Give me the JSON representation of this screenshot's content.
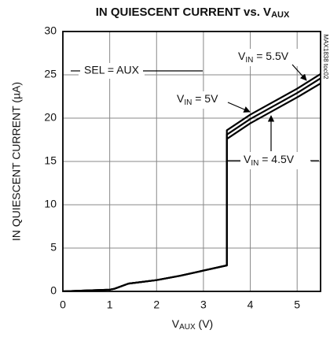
{
  "chart_data": {
    "type": "line",
    "title": {
      "main": "IN QUIESCENT CURRENT vs. V",
      "sub": "AUX"
    },
    "x_label": {
      "main": "V",
      "sub": "AUX",
      "rest": " (V)"
    },
    "y_label": "IN QUIESCENT CURRENT (µA)",
    "note": "MAX1838 toc02",
    "xlim": [
      0,
      5.5
    ],
    "xticks": [
      0,
      1,
      2,
      3,
      4,
      5
    ],
    "ylim": [
      0,
      30
    ],
    "yticks": [
      0,
      5,
      10,
      15,
      20,
      25,
      30
    ],
    "grid": true,
    "series": [
      {
        "color": "#000000",
        "x": [
          0,
          0.5,
          1.0,
          1.1,
          1.4,
          2,
          2.5,
          3,
          3.5,
          3.5,
          4,
          4.5,
          5,
          5.5
        ],
        "values": [
          0,
          0.1,
          0.2,
          0.3,
          0.9,
          1.3,
          1.8,
          2.4,
          3.0,
          17.6,
          19.4,
          20.9,
          22.4,
          24.0
        ]
      },
      {
        "color": "#000000",
        "x": [
          0,
          0.5,
          1.0,
          1.1,
          1.4,
          2,
          2.5,
          3,
          3.5,
          3.5,
          4,
          4.5,
          5,
          5.5
        ],
        "values": [
          0,
          0.1,
          0.2,
          0.3,
          0.9,
          1.3,
          1.8,
          2.4,
          3.0,
          18.1,
          19.9,
          21.4,
          22.9,
          24.6
        ]
      },
      {
        "color": "#000000",
        "x": [
          0,
          0.5,
          1.0,
          1.1,
          1.4,
          2,
          2.5,
          3,
          3.5,
          3.5,
          4,
          4.5,
          5,
          5.5
        ],
        "values": [
          0,
          0.1,
          0.2,
          0.3,
          0.9,
          1.3,
          1.8,
          2.4,
          3.0,
          18.6,
          20.4,
          21.9,
          23.4,
          25.1
        ]
      }
    ],
    "annotations": [
      {
        "main": "SEL = AUX"
      },
      {
        "main": "V",
        "sub": "IN",
        "rest": " = 5.5V"
      },
      {
        "main": "V",
        "sub": "IN",
        "rest": " = 5V"
      },
      {
        "main": "V",
        "sub": "IN",
        "rest": " = 4.5V"
      }
    ]
  }
}
